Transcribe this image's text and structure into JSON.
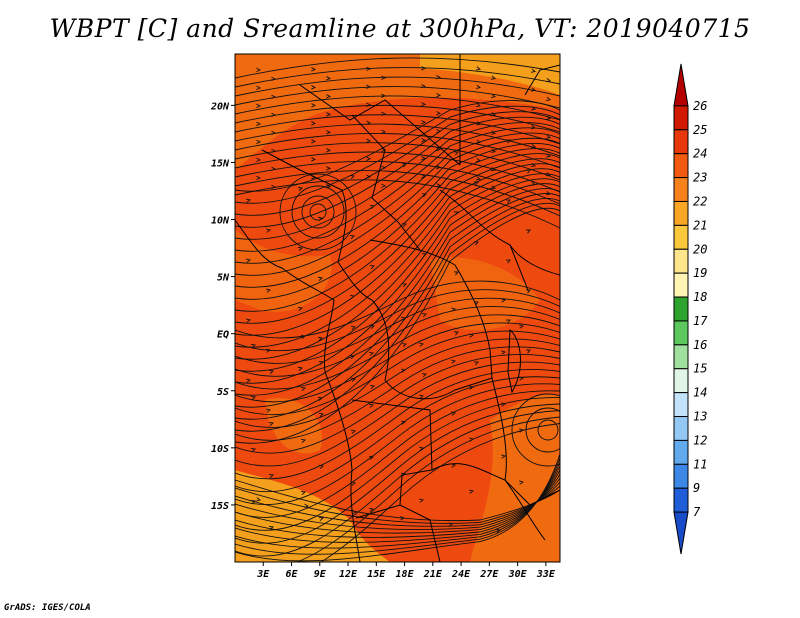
{
  "title": "WBPT [C] and Sreamline at 300hPa, VT: 2019040715",
  "credit": "GrADS: IGES/COLA",
  "map": {
    "lat_ticks": [
      "20N",
      "15N",
      "10N",
      "5N",
      "EQ",
      "5S",
      "10S",
      "15S"
    ],
    "lat_values": [
      20,
      15,
      10,
      5,
      0,
      -5,
      -10,
      -15
    ],
    "lon_ticks": [
      "3E",
      "6E",
      "9E",
      "12E",
      "15E",
      "18E",
      "21E",
      "24E",
      "27E",
      "30E",
      "33E"
    ],
    "lon_values": [
      3,
      6,
      9,
      12,
      15,
      18,
      21,
      24,
      27,
      30,
      33
    ],
    "lon_range": [
      0,
      34.5
    ],
    "lat_range": [
      -20,
      24.5
    ],
    "field_colors": {
      "dominant": "#ee4a10",
      "light": "#f06a10",
      "warm_edge": "#f5a01c"
    }
  },
  "colorbar": {
    "labels": [
      "26",
      "25",
      "24",
      "23",
      "22",
      "21",
      "20",
      "19",
      "18",
      "17",
      "16",
      "15",
      "14",
      "13",
      "12",
      "11",
      "9",
      "7"
    ],
    "colors": [
      "#b40000",
      "#d21a00",
      "#e6380a",
      "#f25a0f",
      "#f7821c",
      "#f9a627",
      "#fbc73c",
      "#fce58a",
      "#fff4b4",
      "#2ea32e",
      "#5cc75c",
      "#9fe09f",
      "#e1f5e7",
      "#c2e3f9",
      "#94c9f5",
      "#63a9ee",
      "#3d88e6",
      "#1f5ed8",
      "#184cc8"
    ]
  }
}
